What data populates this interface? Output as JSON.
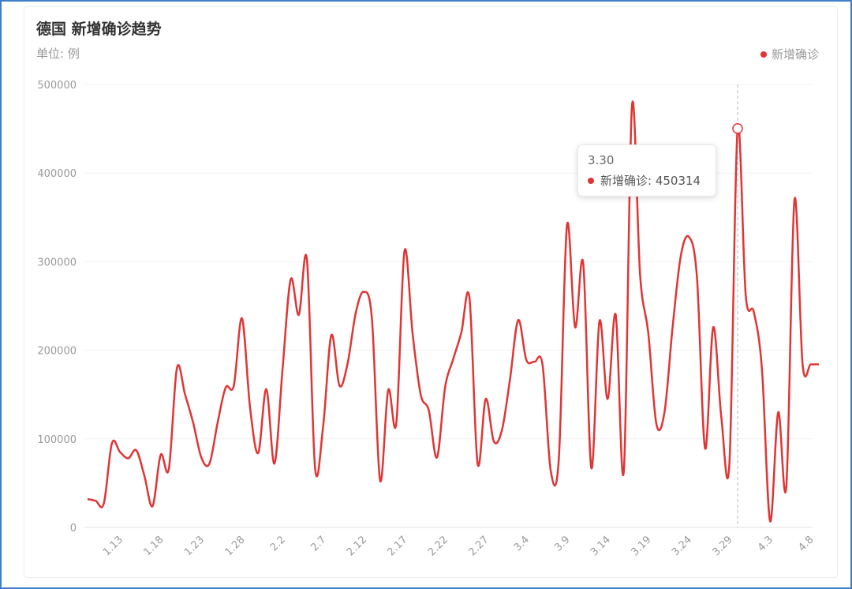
{
  "title": "德国 新增确诊趋势",
  "unit": "单位: 例",
  "legend_label": "新增确诊",
  "series_color": "#e03535",
  "tooltip": {
    "date": "3.30",
    "label": "新增确诊",
    "value": "450314"
  },
  "chart_data": {
    "type": "line",
    "title": "德国 新增确诊趋势",
    "subtitle": "单位: 例",
    "ylim": [
      0,
      500000
    ],
    "y_ticks": [
      "0",
      "100000",
      "200000",
      "300000",
      "400000",
      "500000"
    ],
    "x_tick_labels": [
      "1.13",
      "1.18",
      "1.23",
      "1.28",
      "2.2",
      "2.7",
      "2.12",
      "2.17",
      "2.22",
      "2.27",
      "3.4",
      "3.9",
      "3.14",
      "3.19",
      "3.24",
      "3.29",
      "4.3",
      "4.8"
    ],
    "grid": true,
    "legend_position": "top-right",
    "series": [
      {
        "name": "新增确诊",
        "x": [
          "1.9",
          "1.10",
          "1.11",
          "1.12",
          "1.13",
          "1.14",
          "1.15",
          "1.16",
          "1.17",
          "1.18",
          "1.19",
          "1.20",
          "1.21",
          "1.22",
          "1.23",
          "1.24",
          "1.25",
          "1.26",
          "1.27",
          "1.28",
          "1.29",
          "1.30",
          "1.31",
          "2.1",
          "2.2",
          "2.3",
          "2.4",
          "2.5",
          "2.6",
          "2.7",
          "2.8",
          "2.9",
          "2.10",
          "2.11",
          "2.12",
          "2.13",
          "2.14",
          "2.15",
          "2.16",
          "2.17",
          "2.18",
          "2.19",
          "2.20",
          "2.21",
          "2.22",
          "2.23",
          "2.24",
          "2.25",
          "2.26",
          "2.27",
          "2.28",
          "3.1",
          "3.2",
          "3.3",
          "3.4",
          "3.5",
          "3.6",
          "3.7",
          "3.8",
          "3.9",
          "3.10",
          "3.11",
          "3.12",
          "3.13",
          "3.14",
          "3.15",
          "3.16",
          "3.17",
          "3.18",
          "3.19",
          "3.20",
          "3.21",
          "3.22",
          "3.23",
          "3.24",
          "3.25",
          "3.26",
          "3.27",
          "3.28",
          "3.29",
          "3.30",
          "3.31",
          "4.1",
          "4.2",
          "4.3",
          "4.4",
          "4.5",
          "4.6",
          "4.7",
          "4.8",
          "4.9"
        ],
        "values": [
          32000,
          30000,
          27000,
          95000,
          85000,
          78000,
          87000,
          58000,
          24000,
          82000,
          66000,
          180000,
          150000,
          118000,
          79000,
          72000,
          118000,
          158000,
          160000,
          236000,
          135000,
          84000,
          156000,
          72000,
          179000,
          280000,
          240000,
          302000,
          67000,
          115000,
          217000,
          160000,
          185000,
          242000,
          266000,
          235000,
          53000,
          155000,
          118000,
          312000,
          219000,
          150000,
          132000,
          79000,
          158000,
          190000,
          220000,
          259000,
          72000,
          145000,
          97000,
          110000,
          168000,
          234000,
          189000,
          187000,
          183000,
          64000,
          78000,
          341000,
          226000,
          298000,
          67000,
          233000,
          145000,
          240000,
          64000,
          476000,
          285000,
          220000,
          117000,
          130000,
          226000,
          306000,
          328000,
          282000,
          89000,
          226000,
          124000,
          74000,
          450314,
          262000,
          243000,
          178000,
          7000,
          130000,
          47000,
          370000,
          184000,
          184000,
          184000
        ]
      }
    ],
    "highlighted_point": {
      "x": "3.30",
      "value": 450314
    }
  }
}
